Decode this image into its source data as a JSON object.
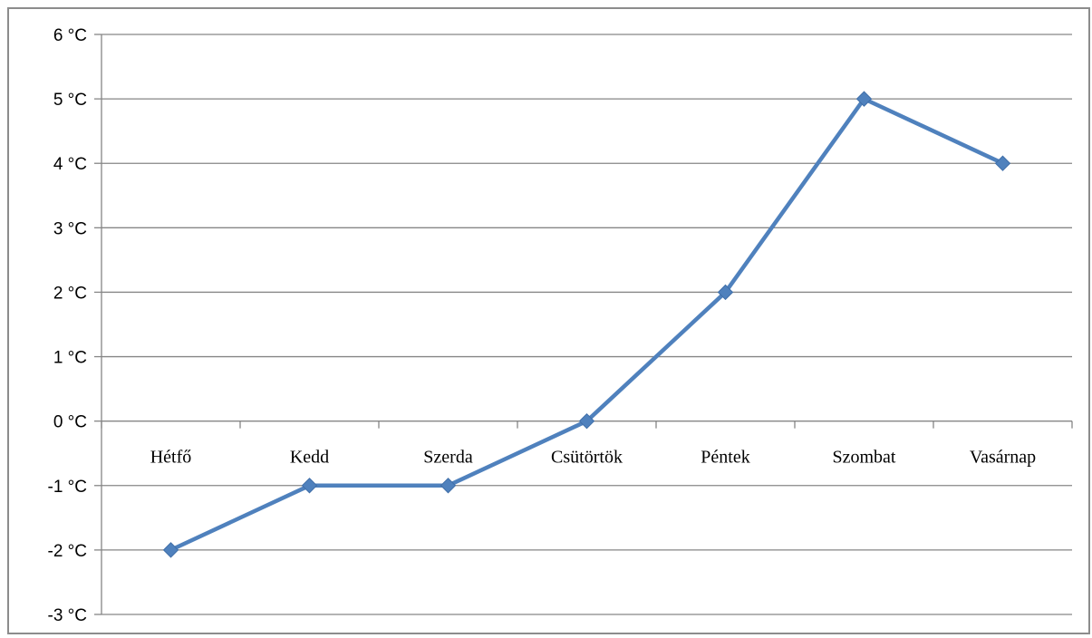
{
  "chart_data": {
    "type": "line",
    "categories": [
      "Hétfő",
      "Kedd",
      "Szerda",
      "Csütörtök",
      "Péntek",
      "Szombat",
      "Vasárnap"
    ],
    "series": [
      {
        "values": [
          -2,
          -1,
          -1,
          0,
          2,
          5,
          4
        ]
      }
    ],
    "y_ticks": [
      "6 °C",
      "5 °C",
      "4 °C",
      "3 °C",
      "2 °C",
      "1 °C",
      "0 °C",
      "-1 °C",
      "-2 °C",
      "-3 °C"
    ],
    "y_tick_values": [
      6,
      5,
      4,
      3,
      2,
      1,
      0,
      -1,
      -2,
      -3
    ],
    "ylim": [
      -3,
      6
    ],
    "grid": true,
    "legend": "none",
    "title": "",
    "xlabel": "",
    "ylabel": "",
    "colors": {
      "line": "#4F81BD",
      "marker": "#4F81BD",
      "grid": "#868686",
      "axis": "#868686"
    }
  }
}
